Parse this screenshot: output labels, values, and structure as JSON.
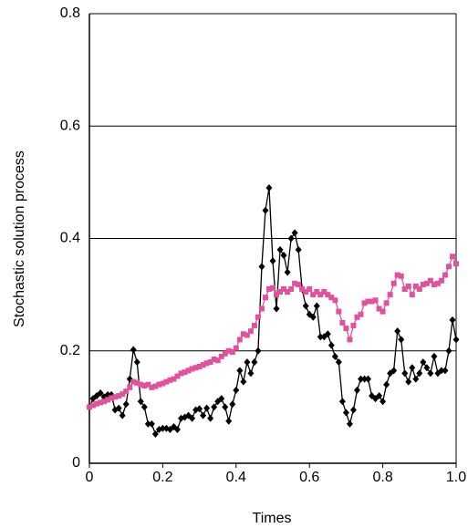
{
  "chart_data": {
    "type": "line",
    "x_label": "Times",
    "y_label": "Stochastic solution process",
    "x": [
      0,
      0.01,
      0.02,
      0.03,
      0.04,
      0.05,
      0.06,
      0.07,
      0.08,
      0.09,
      0.1,
      0.11,
      0.12,
      0.13,
      0.14,
      0.15,
      0.16,
      0.17,
      0.18,
      0.19,
      0.2,
      0.21,
      0.22,
      0.23,
      0.24,
      0.25,
      0.26,
      0.27,
      0.28,
      0.29,
      0.3,
      0.31,
      0.32,
      0.33,
      0.34,
      0.35,
      0.36,
      0.37,
      0.38,
      0.39,
      0.4,
      0.41,
      0.42,
      0.43,
      0.44,
      0.45,
      0.46,
      0.47,
      0.48,
      0.49,
      0.5,
      0.51,
      0.52,
      0.53,
      0.54,
      0.55,
      0.56,
      0.57,
      0.58,
      0.59,
      0.6,
      0.61,
      0.62,
      0.63,
      0.64,
      0.65,
      0.66,
      0.67,
      0.68,
      0.69,
      0.7,
      0.71,
      0.72,
      0.73,
      0.74,
      0.75,
      0.76,
      0.77,
      0.78,
      0.79,
      0.8,
      0.81,
      0.82,
      0.83,
      0.84,
      0.85,
      0.86,
      0.87,
      0.88,
      0.89,
      0.9,
      0.91,
      0.92,
      0.93,
      0.94,
      0.95,
      0.96,
      0.97,
      0.98,
      0.99,
      1
    ],
    "series": [
      {
        "color": "#000000",
        "marker": "diamond",
        "values": [
          0.1,
          0.115,
          0.12,
          0.125,
          0.118,
          0.122,
          0.122,
          0.095,
          0.098,
          0.085,
          0.105,
          0.15,
          0.202,
          0.18,
          0.11,
          0.1,
          0.07,
          0.07,
          0.052,
          0.06,
          0.062,
          0.062,
          0.06,
          0.065,
          0.06,
          0.08,
          0.082,
          0.085,
          0.08,
          0.095,
          0.097,
          0.085,
          0.098,
          0.08,
          0.1,
          0.11,
          0.115,
          0.1,
          0.075,
          0.105,
          0.13,
          0.165,
          0.145,
          0.18,
          0.16,
          0.18,
          0.2,
          0.35,
          0.45,
          0.49,
          0.36,
          0.275,
          0.38,
          0.37,
          0.34,
          0.4,
          0.41,
          0.38,
          0.31,
          0.28,
          0.265,
          0.26,
          0.28,
          0.225,
          0.225,
          0.23,
          0.21,
          0.19,
          0.18,
          0.11,
          0.09,
          0.07,
          0.095,
          0.13,
          0.15,
          0.15,
          0.15,
          0.12,
          0.115,
          0.12,
          0.11,
          0.14,
          0.16,
          0.165,
          0.235,
          0.22,
          0.16,
          0.145,
          0.17,
          0.15,
          0.16,
          0.18,
          0.17,
          0.16,
          0.19,
          0.16,
          0.165,
          0.165,
          0.2,
          0.255,
          0.22
        ]
      },
      {
        "color": "#e0529c",
        "marker": "square",
        "values": [
          0.1,
          0.103,
          0.106,
          0.108,
          0.11,
          0.113,
          0.116,
          0.118,
          0.12,
          0.123,
          0.128,
          0.135,
          0.145,
          0.143,
          0.14,
          0.138,
          0.14,
          0.135,
          0.137,
          0.14,
          0.142,
          0.145,
          0.148,
          0.15,
          0.155,
          0.16,
          0.162,
          0.165,
          0.168,
          0.17,
          0.172,
          0.175,
          0.178,
          0.18,
          0.185,
          0.183,
          0.19,
          0.195,
          0.2,
          0.198,
          0.205,
          0.22,
          0.23,
          0.228,
          0.235,
          0.245,
          0.26,
          0.275,
          0.295,
          0.31,
          0.312,
          0.3,
          0.305,
          0.31,
          0.305,
          0.31,
          0.32,
          0.318,
          0.31,
          0.305,
          0.31,
          0.3,
          0.305,
          0.3,
          0.305,
          0.3,
          0.295,
          0.29,
          0.27,
          0.25,
          0.24,
          0.22,
          0.245,
          0.26,
          0.265,
          0.285,
          0.288,
          0.288,
          0.29,
          0.275,
          0.27,
          0.285,
          0.3,
          0.32,
          0.335,
          0.333,
          0.31,
          0.315,
          0.3,
          0.315,
          0.31,
          0.318,
          0.32,
          0.325,
          0.318,
          0.32,
          0.325,
          0.335,
          0.35,
          0.368,
          0.355
        ]
      }
    ],
    "xlim": [
      0,
      1
    ],
    "xticks": [
      0,
      0.2,
      0.4,
      0.6,
      0.8,
      {
        "value": 1,
        "label": "1.0"
      }
    ],
    "ylim": [
      0,
      0.8
    ],
    "yticks": [
      0,
      0.2,
      0.4,
      0.6,
      0.8
    ],
    "grid": true
  }
}
